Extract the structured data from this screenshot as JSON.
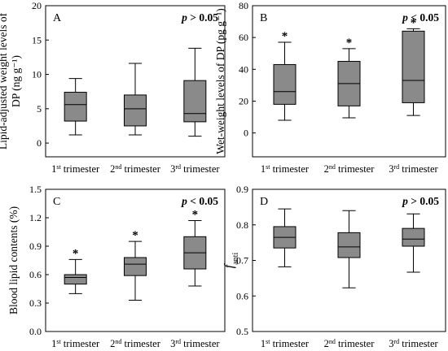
{
  "chart_data": [
    {
      "type": "box",
      "panel": "A",
      "significance": "p > 0.05",
      "ylabel": "Lipid-adjusted weight levels of DP (ng g⁻¹)",
      "ylim": [
        -2,
        20
      ],
      "yticks": [
        "0",
        "5",
        "10",
        "15",
        "20"
      ],
      "categories": [
        "1st trimester",
        "2nd trimester",
        "3rd trimester"
      ],
      "boxes": [
        {
          "min": 1.2,
          "q1": 3.2,
          "median": 5.6,
          "q3": 7.4,
          "max": 9.4,
          "marker": ""
        },
        {
          "min": 1.2,
          "q1": 2.5,
          "median": 5.0,
          "q3": 7.0,
          "max": 11.6,
          "marker": ""
        },
        {
          "min": 1.0,
          "q1": 3.1,
          "median": 4.3,
          "q3": 9.1,
          "max": 13.8,
          "marker": ""
        }
      ]
    },
    {
      "type": "box",
      "panel": "B",
      "significance": "p < 0.05",
      "ylabel": "Wet-weight levels of DP (pg g⁻¹)",
      "ylim": [
        -15,
        80
      ],
      "yticks": [
        "0",
        "20",
        "40",
        "60",
        "80"
      ],
      "categories": [
        "1st trimester",
        "2nd trimester",
        "3rd trimester"
      ],
      "boxes": [
        {
          "min": 8,
          "q1": 18,
          "median": 26,
          "q3": 43,
          "max": 57,
          "marker": "*"
        },
        {
          "min": 9.5,
          "q1": 17,
          "median": 31,
          "q3": 45,
          "max": 53,
          "marker": "*"
        },
        {
          "min": 11,
          "q1": 19,
          "median": 33,
          "q3": 64,
          "max": 65.5,
          "marker": "*"
        }
      ]
    },
    {
      "type": "box",
      "panel": "C",
      "significance": "p < 0.05",
      "ylabel": "Blood lipid contents (%)",
      "ylim": [
        0.0,
        1.5
      ],
      "yticks": [
        "0.0",
        "0.3",
        "0.6",
        "0.9",
        "1.2",
        "1.5"
      ],
      "categories": [
        "1st trimester",
        "2nd trimester",
        "3rd trimester"
      ],
      "boxes": [
        {
          "min": 0.4,
          "q1": 0.5,
          "median": 0.57,
          "q3": 0.6,
          "max": 0.76,
          "marker": "*"
        },
        {
          "min": 0.33,
          "q1": 0.59,
          "median": 0.71,
          "q3": 0.78,
          "max": 0.95,
          "marker": "*"
        },
        {
          "min": 0.48,
          "q1": 0.66,
          "median": 0.83,
          "q3": 1.0,
          "max": 1.17,
          "marker": "*"
        }
      ]
    },
    {
      "type": "box",
      "panel": "D",
      "significance": "p > 0.05",
      "ylabel": "f_anti",
      "ylabel_main": "f",
      "ylabel_sub": "anti",
      "ylim": [
        0.5,
        0.9
      ],
      "yticks": [
        "0.5",
        "0.6",
        "0.7",
        "0.8",
        "0.9"
      ],
      "categories": [
        "1st trimester",
        "2nd trimester",
        "3rd trimester"
      ],
      "boxes": [
        {
          "min": 0.682,
          "q1": 0.735,
          "median": 0.765,
          "q3": 0.795,
          "max": 0.845,
          "marker": ""
        },
        {
          "min": 0.623,
          "q1": 0.708,
          "median": 0.738,
          "q3": 0.778,
          "max": 0.84,
          "marker": ""
        },
        {
          "min": 0.667,
          "q1": 0.74,
          "median": 0.76,
          "q3": 0.79,
          "max": 0.831,
          "marker": ""
        }
      ]
    }
  ]
}
